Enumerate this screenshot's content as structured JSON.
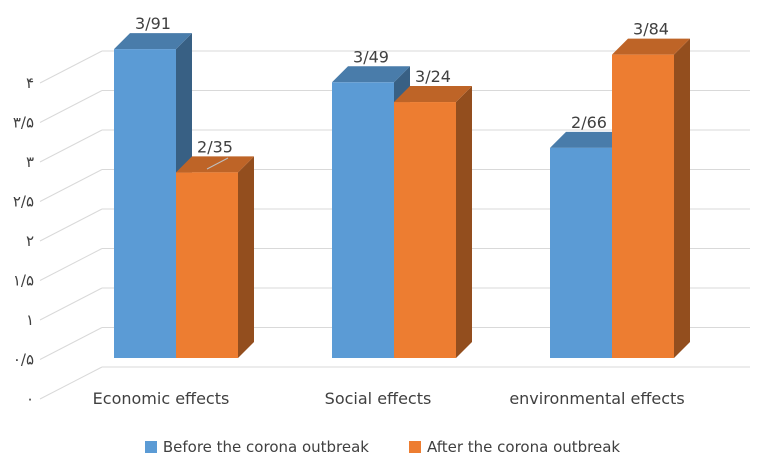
{
  "chart_data": {
    "type": "bar",
    "style": "3d-clustered-column",
    "title": "",
    "xlabel": "",
    "ylabel": "",
    "ylim": [
      0,
      4
    ],
    "yticks": [
      0,
      0.5,
      1,
      1.5,
      2,
      2.5,
      3,
      3.5,
      4
    ],
    "ytick_labels": [
      "۰",
      "۰/۵",
      "۱",
      "۱/۵",
      "۲",
      "۲/۵",
      "۳",
      "۳/۵",
      "۴"
    ],
    "categories": [
      "Economic effects",
      "Social effects",
      "environmental effects"
    ],
    "series": [
      {
        "name": "Before the corona outbreak",
        "values": [
          3.91,
          3.49,
          2.66
        ],
        "labels": [
          "3/91",
          "3/49",
          "2/66"
        ],
        "color": "#5B9BD5"
      },
      {
        "name": "After the corona outbreak",
        "values": [
          2.35,
          3.24,
          3.84
        ],
        "labels": [
          "2/35",
          "3/24",
          "3/84"
        ],
        "color": "#ED7D31"
      }
    ],
    "grid": true,
    "legend": "bottom"
  }
}
